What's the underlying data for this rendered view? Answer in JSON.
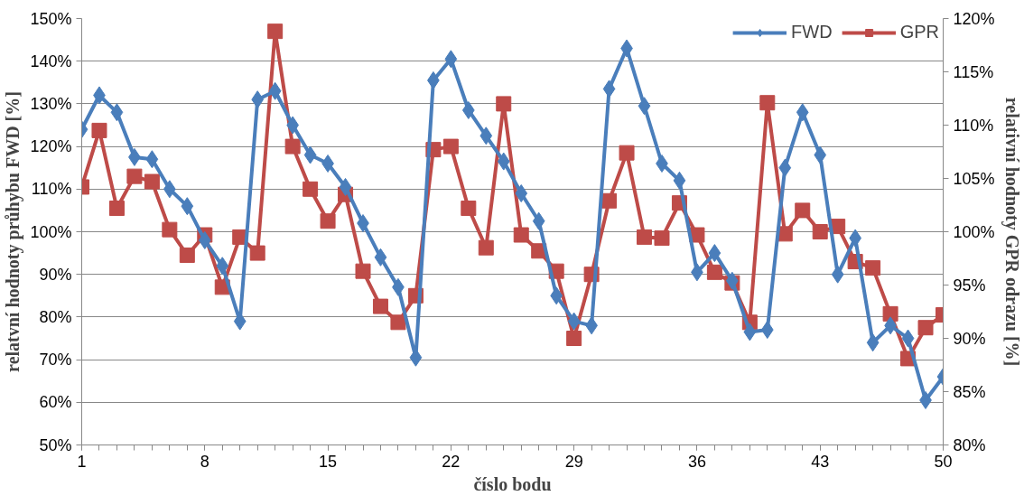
{
  "chart_data": {
    "type": "line",
    "xlabel": "číslo bodu",
    "ylabel": "relatvní hodnoty průhybu FWD [%]",
    "y2label": "relativní hodnoty GPR odrazu [%]",
    "x": [
      1,
      2,
      3,
      4,
      5,
      6,
      7,
      8,
      9,
      10,
      11,
      12,
      13,
      14,
      15,
      16,
      17,
      18,
      19,
      20,
      21,
      22,
      23,
      24,
      25,
      26,
      27,
      28,
      29,
      30,
      31,
      32,
      33,
      34,
      35,
      36,
      37,
      38,
      39,
      40,
      41,
      42,
      43,
      44,
      45,
      46,
      47,
      48,
      49,
      50
    ],
    "series": [
      {
        "name": "FWD",
        "color": "#4a7ebb",
        "marker": "diamond",
        "values": [
          124,
          132,
          128,
          117.5,
          117,
          110,
          106,
          98,
          92,
          79,
          131,
          133,
          125,
          118,
          116,
          110.5,
          102,
          94,
          87,
          70.5,
          135.5,
          140.5,
          128.5,
          122.5,
          116.5,
          109,
          102.5,
          85,
          79,
          78,
          133.5,
          143,
          129.5,
          116,
          112,
          90.5,
          95,
          88.5,
          76.5,
          77,
          115,
          128,
          118,
          90,
          98.5,
          74,
          78,
          75,
          60.5,
          66
        ]
      },
      {
        "name": "GPR",
        "color": "#be4b48",
        "marker": "square",
        "axis": "y2",
        "values": [
          104.2,
          109.5,
          102.2,
          105.2,
          104.7,
          100.2,
          97.8,
          99.7,
          94.8,
          99.5,
          98,
          118.8,
          108,
          104,
          101,
          103.5,
          96.3,
          93,
          91.5,
          94,
          107.7,
          108,
          102.2,
          98.5,
          112,
          99.7,
          98.2,
          96.3,
          90,
          96,
          102.9,
          107.4,
          99.5,
          99.4,
          102.7,
          99.7,
          96.2,
          95.2,
          91.5,
          112.1,
          99.8,
          102,
          100,
          100.5,
          97.2,
          96.6,
          92.3,
          88.1,
          91,
          92.2
        ]
      }
    ],
    "xlim": [
      1,
      50
    ],
    "xticks": [
      1,
      8,
      15,
      22,
      29,
      36,
      43,
      50
    ],
    "ylim": [
      50,
      150
    ],
    "yticks": [
      {
        "value": 50,
        "label": "50%"
      },
      {
        "value": 60,
        "label": "60%"
      },
      {
        "value": 70,
        "label": "70%"
      },
      {
        "value": 80,
        "label": "80%"
      },
      {
        "value": 90,
        "label": "90%"
      },
      {
        "value": 100,
        "label": "100%"
      },
      {
        "value": 110,
        "label": "110%"
      },
      {
        "value": 120,
        "label": "120%"
      },
      {
        "value": 130,
        "label": "130%"
      },
      {
        "value": 140,
        "label": "140%"
      },
      {
        "value": 150,
        "label": "150%"
      }
    ],
    "y2lim": [
      80,
      120
    ],
    "y2ticks": [
      {
        "value": 80,
        "label": "80%"
      },
      {
        "value": 85,
        "label": "85%"
      },
      {
        "value": 90,
        "label": "90%"
      },
      {
        "value": 95,
        "label": "95%"
      },
      {
        "value": 100,
        "label": "100%"
      },
      {
        "value": 105,
        "label": "105%"
      },
      {
        "value": 110,
        "label": "110%"
      },
      {
        "value": 115,
        "label": "115%"
      },
      {
        "value": 120,
        "label": "120%"
      }
    ],
    "grid": "y",
    "legend": "top right",
    "line_style": "solid"
  }
}
